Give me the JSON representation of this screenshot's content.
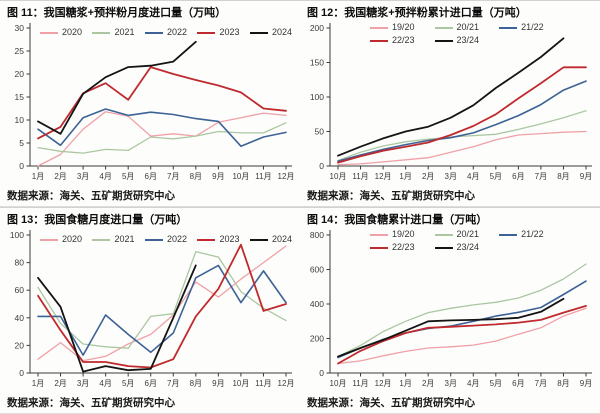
{
  "page": {
    "background": "#fdfdfb",
    "divider_color": "#d2d2d0"
  },
  "figures": [
    {
      "title": "图 11：我国糖浆+预拌粉月度进口量（万吨）",
      "source": "数据来源：海关、五矿期货研究中心"
    },
    {
      "title": "图 12：我国糖浆+预拌粉累计进口量（万吨）",
      "source": "数据来源：海关、五矿期货研究中心"
    },
    {
      "title": "图 13：我国食糖月度进口量（万吨）",
      "source": "数据来源：海关、五矿期货研究中心"
    },
    {
      "title": "图 14：我国食糖累计进口量（万吨）",
      "source": "数据来源：海关、五矿期货研究中心"
    }
  ],
  "chart_data": [
    {
      "type": "line",
      "title": "我国糖浆+预拌粉月度进口量（万吨）",
      "categories": [
        "1月",
        "2月",
        "3月",
        "4月",
        "5月",
        "6月",
        "7月",
        "8月",
        "9月",
        "10月",
        "11月",
        "12月"
      ],
      "ylim": [
        0,
        30
      ],
      "yticks": [
        0,
        5,
        10,
        15,
        20,
        25,
        30
      ],
      "grid": false,
      "legend_position": "top-row",
      "series": [
        {
          "name": "2020",
          "color": "#efa1a7",
          "width": 1.3,
          "values": [
            0,
            2.5,
            8,
            11.8,
            10.8,
            6.5,
            7,
            6.5,
            9.5,
            10.5,
            11.5,
            11
          ]
        },
        {
          "name": "2021",
          "color": "#abc7a2",
          "width": 1.3,
          "values": [
            4,
            3.2,
            2.8,
            3.6,
            3.4,
            6.3,
            5.9,
            6.5,
            7.5,
            7.2,
            7.2,
            9.4
          ]
        },
        {
          "name": "2022",
          "color": "#3c6296",
          "width": 1.6,
          "values": [
            8,
            4.5,
            10.5,
            12.4,
            11,
            11.7,
            11.2,
            10.3,
            9.7,
            4.3,
            6.3,
            7.3
          ]
        },
        {
          "name": "2023",
          "color": "#bf2a2e",
          "width": 1.8,
          "values": [
            6,
            8.5,
            15.8,
            18,
            14.4,
            21.5,
            20,
            18.7,
            17.5,
            16,
            12.5,
            12
          ]
        },
        {
          "name": "2024",
          "color": "#141414",
          "width": 1.8,
          "values": [
            9.7,
            7,
            15.7,
            19.3,
            21.5,
            21.8,
            22.7,
            27
          ]
        }
      ]
    },
    {
      "type": "line",
      "title": "我国糖浆+预拌粉累计进口量（万吨）",
      "categories": [
        "10月",
        "11月",
        "12月",
        "1月",
        "2月",
        "3月",
        "4月",
        "5月",
        "6月",
        "7月",
        "8月",
        "9月"
      ],
      "ylim": [
        0,
        200
      ],
      "yticks": [
        0,
        50,
        100,
        150,
        200
      ],
      "grid": false,
      "legend_position": "top-wrap",
      "series": [
        {
          "name": "19/20",
          "color": "#efa1a7",
          "width": 1.3,
          "values": [
            2,
            3,
            6,
            9,
            12,
            20,
            28,
            38,
            45,
            47,
            49,
            50
          ]
        },
        {
          "name": "20/21",
          "color": "#abc7a2",
          "width": 1.3,
          "values": [
            8,
            20,
            29,
            35,
            39,
            42,
            44,
            46,
            53,
            61,
            70,
            80
          ]
        },
        {
          "name": "21/22",
          "color": "#3c6296",
          "width": 1.6,
          "values": [
            7,
            16,
            24,
            31,
            37,
            41,
            48,
            60,
            73,
            89,
            110,
            123
          ]
        },
        {
          "name": "22/23",
          "color": "#bf2a2e",
          "width": 1.8,
          "values": [
            5,
            14,
            22,
            28,
            34,
            45,
            58,
            75,
            98,
            120,
            143,
            143
          ]
        },
        {
          "name": "23/24",
          "color": "#141414",
          "width": 1.8,
          "values": [
            15,
            28,
            40,
            50,
            57,
            70,
            88,
            113,
            135,
            158,
            185
          ]
        }
      ]
    },
    {
      "type": "line",
      "title": "我国食糖月度进口量（万吨）",
      "categories": [
        "1月",
        "2月",
        "3月",
        "4月",
        "5月",
        "6月",
        "7月",
        "8月",
        "9月",
        "10月",
        "11月",
        "12月"
      ],
      "ylim": [
        0,
        100
      ],
      "yticks": [
        0,
        20,
        40,
        60,
        80,
        100
      ],
      "grid": false,
      "legend_position": "top-row",
      "series": [
        {
          "name": "2020",
          "color": "#efa1a7",
          "width": 1.3,
          "values": [
            10,
            22,
            9,
            12,
            21,
            28,
            42,
            66,
            55,
            68,
            80,
            92
          ]
        },
        {
          "name": "2021",
          "color": "#abc7a2",
          "width": 1.3,
          "values": [
            62,
            36,
            21,
            19,
            18,
            41,
            43,
            88,
            84,
            59,
            47,
            38
          ]
        },
        {
          "name": "2022",
          "color": "#3c6296",
          "width": 1.6,
          "values": [
            41,
            41,
            13,
            42,
            28,
            15,
            29,
            69,
            78,
            51,
            74,
            51
          ]
        },
        {
          "name": "2023",
          "color": "#bf2a2e",
          "width": 1.8,
          "values": [
            56,
            31,
            8,
            8,
            5,
            4,
            10,
            41,
            61,
            93,
            45,
            50
          ]
        },
        {
          "name": "2024",
          "color": "#141414",
          "width": 1.8,
          "values": [
            69,
            48,
            1,
            5,
            2,
            3,
            40,
            78
          ]
        }
      ]
    },
    {
      "type": "line",
      "title": "我国食糖累计进口量（万吨）",
      "categories": [
        "10月",
        "11月",
        "12月",
        "1月",
        "2月",
        "3月",
        "4月",
        "5月",
        "6月",
        "7月",
        "8月",
        "9月"
      ],
      "ylim": [
        0,
        800
      ],
      "yticks": [
        0,
        200,
        400,
        600,
        800
      ],
      "grid": false,
      "legend_position": "top-wrap",
      "series": [
        {
          "name": "19/20",
          "color": "#efa1a7",
          "width": 1.3,
          "values": [
            55,
            70,
            100,
            125,
            145,
            152,
            162,
            185,
            225,
            262,
            330,
            375
          ]
        },
        {
          "name": "20/21",
          "color": "#abc7a2",
          "width": 1.3,
          "values": [
            95,
            160,
            240,
            300,
            350,
            375,
            395,
            410,
            435,
            480,
            545,
            632
          ]
        },
        {
          "name": "21/22",
          "color": "#3c6296",
          "width": 1.6,
          "values": [
            90,
            145,
            195,
            232,
            258,
            272,
            300,
            330,
            352,
            380,
            455,
            533
          ]
        },
        {
          "name": "22/23",
          "color": "#bf2a2e",
          "width": 1.8,
          "values": [
            55,
            128,
            185,
            232,
            262,
            268,
            275,
            282,
            292,
            308,
            350,
            389
          ]
        },
        {
          "name": "23/24",
          "color": "#141414",
          "width": 1.8,
          "values": [
            95,
            145,
            192,
            245,
            300,
            305,
            308,
            312,
            320,
            355,
            430
          ]
        }
      ]
    }
  ]
}
